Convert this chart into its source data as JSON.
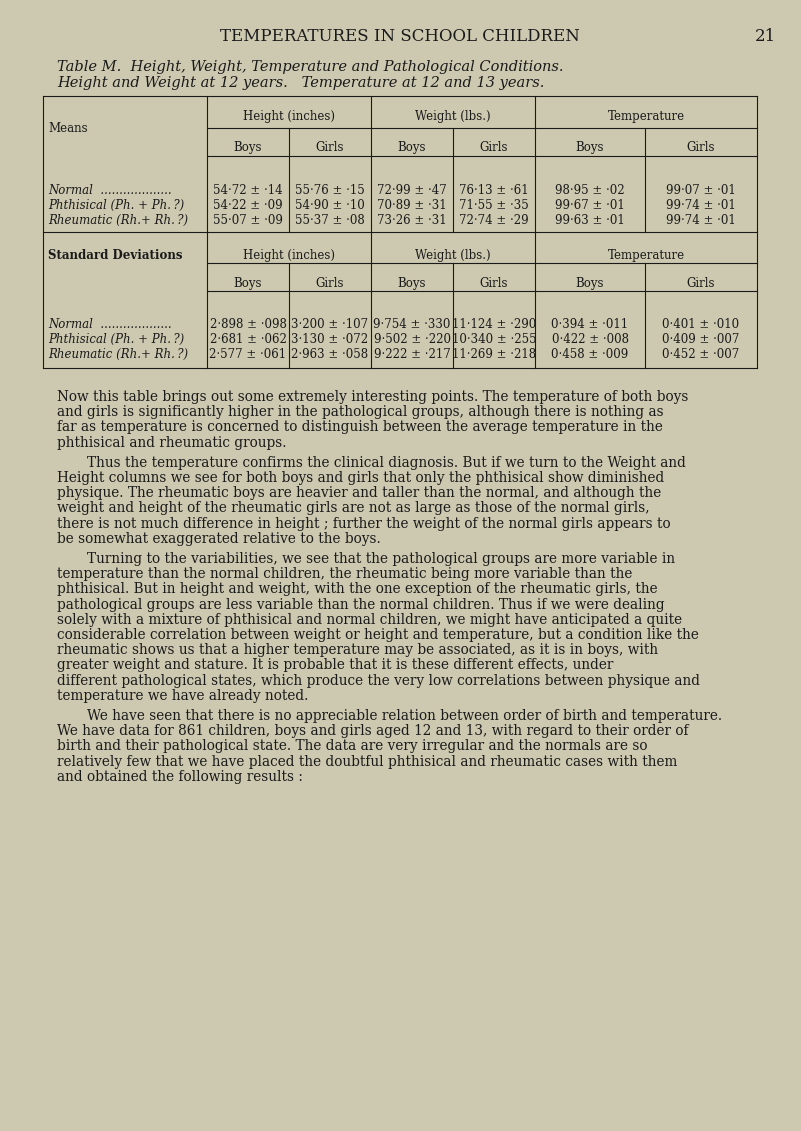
{
  "page_title": "TEMPERATURES IN SCHOOL CHILDREN",
  "page_number": "21",
  "table_title_line1": "Table M.  Height, Weight, Temperature and Pathological Conditions.",
  "table_title_line2": "Height and Weight at 12 years.   Temperature at 12 and 13 years.",
  "bg_color": "#cdc9b0",
  "text_color": "#1a1a1a",
  "col_groups": [
    "Height (inches)",
    "Weight (lbs.)",
    "Temperature"
  ],
  "sub_cols": [
    "Boys",
    "Girls"
  ],
  "row_label_means": "Means",
  "row_label_sd": "Standard Deviations",
  "means_rows": [
    [
      "Normal  ...................",
      "54·72 ± ·14",
      "55·76 ± ·15",
      "72·99 ± ·47",
      "76·13 ± ·61",
      "98·95 ± ·02",
      "99·07 ± ·01"
    ],
    [
      "Phthisical (Ph. + Ph. ?)",
      "54·22 ± ·09",
      "54·90 ± ·10",
      "70·89 ± ·31",
      "71·55 ± ·35",
      "99·67 ± ·01",
      "99·74 ± ·01"
    ],
    [
      "Rheumatic (Rh.+ Rh. ?)",
      "55·07 ± ·09",
      "55·37 ± ·08",
      "73·26 ± ·31",
      "72·74 ± ·29",
      "99·63 ± ·01",
      "99·74 ± ·01"
    ]
  ],
  "sd_rows": [
    [
      "Normal  ...................",
      "2·898 ± ·098",
      "3·200 ± ·107",
      "9·754 ± ·330",
      "11·124 ± ·290",
      "0·394 ± ·011",
      "0·401 ± ·010"
    ],
    [
      "Phthisical (Ph. + Ph. ?)",
      "2·681 ± ·062",
      "3·130 ± ·072",
      "9·502 ± ·220",
      "10·340 ± ·255",
      "0·422 ± ·008",
      "0·409 ± ·007"
    ],
    [
      "Rheumatic (Rh.+ Rh. ?)",
      "2·577 ± ·061",
      "2·963 ± ·058",
      "9·222 ± ·217",
      "11·269 ± ·218",
      "0·458 ± ·009",
      "0·452 ± ·007"
    ]
  ],
  "body_paragraphs": [
    [
      "normal",
      "Now this table brings out some extremely interesting points.  The temperature of both boys and girls is significantly higher in the pathological groups, although there is nothing as far as temperature is concerned to distinguish between the average temperature in the phthisical and rheumatic groups."
    ],
    [
      "indent",
      "Thus the temperature confirms the clinical diagnosis.  But if we turn to the Weight and Height columns we see for both boys and girls that only the phthisical show diminished physique.  The rheumatic boys are heavier and taller than the normal, and although the weight and height of the rheumatic girls are not as large as those of the normal girls, there is not much difference in height ; further the weight of the normal girls appears to be somewhat exaggerated relative to the boys."
    ],
    [
      "indent",
      "Turning to the variabilities, we see that the pathological groups are more variable in temperature than the normal children, the rheumatic being more variable than the phthisical.  But in height and weight, with the one exception of the rheumatic girls, the pathological groups are less variable than the normal children. Thus if we were dealing solely with a mixture of phthisical and normal children, we might have anticipated a quite considerable correlation between weight or height and temperature, but a condition like the rheumatic shows us that a higher temperature may be associated, as it is in boys, with greater weight and stature.  It is probable that it is these different effects, under different pathological states, which produce the very low correlations between physique and temperature we have already noted."
    ],
    [
      "indent",
      "We have seen that there is no appreciable relation between order of birth and temperature.  We have data for 861 children, boys and girls aged 12 and 13, with regard to their order of birth and their pathological state.  The data are very irregular and the normals are so relatively few that we have placed the doubtful phthisical and rheumatic cases with them and obtained the following results :"
    ]
  ]
}
